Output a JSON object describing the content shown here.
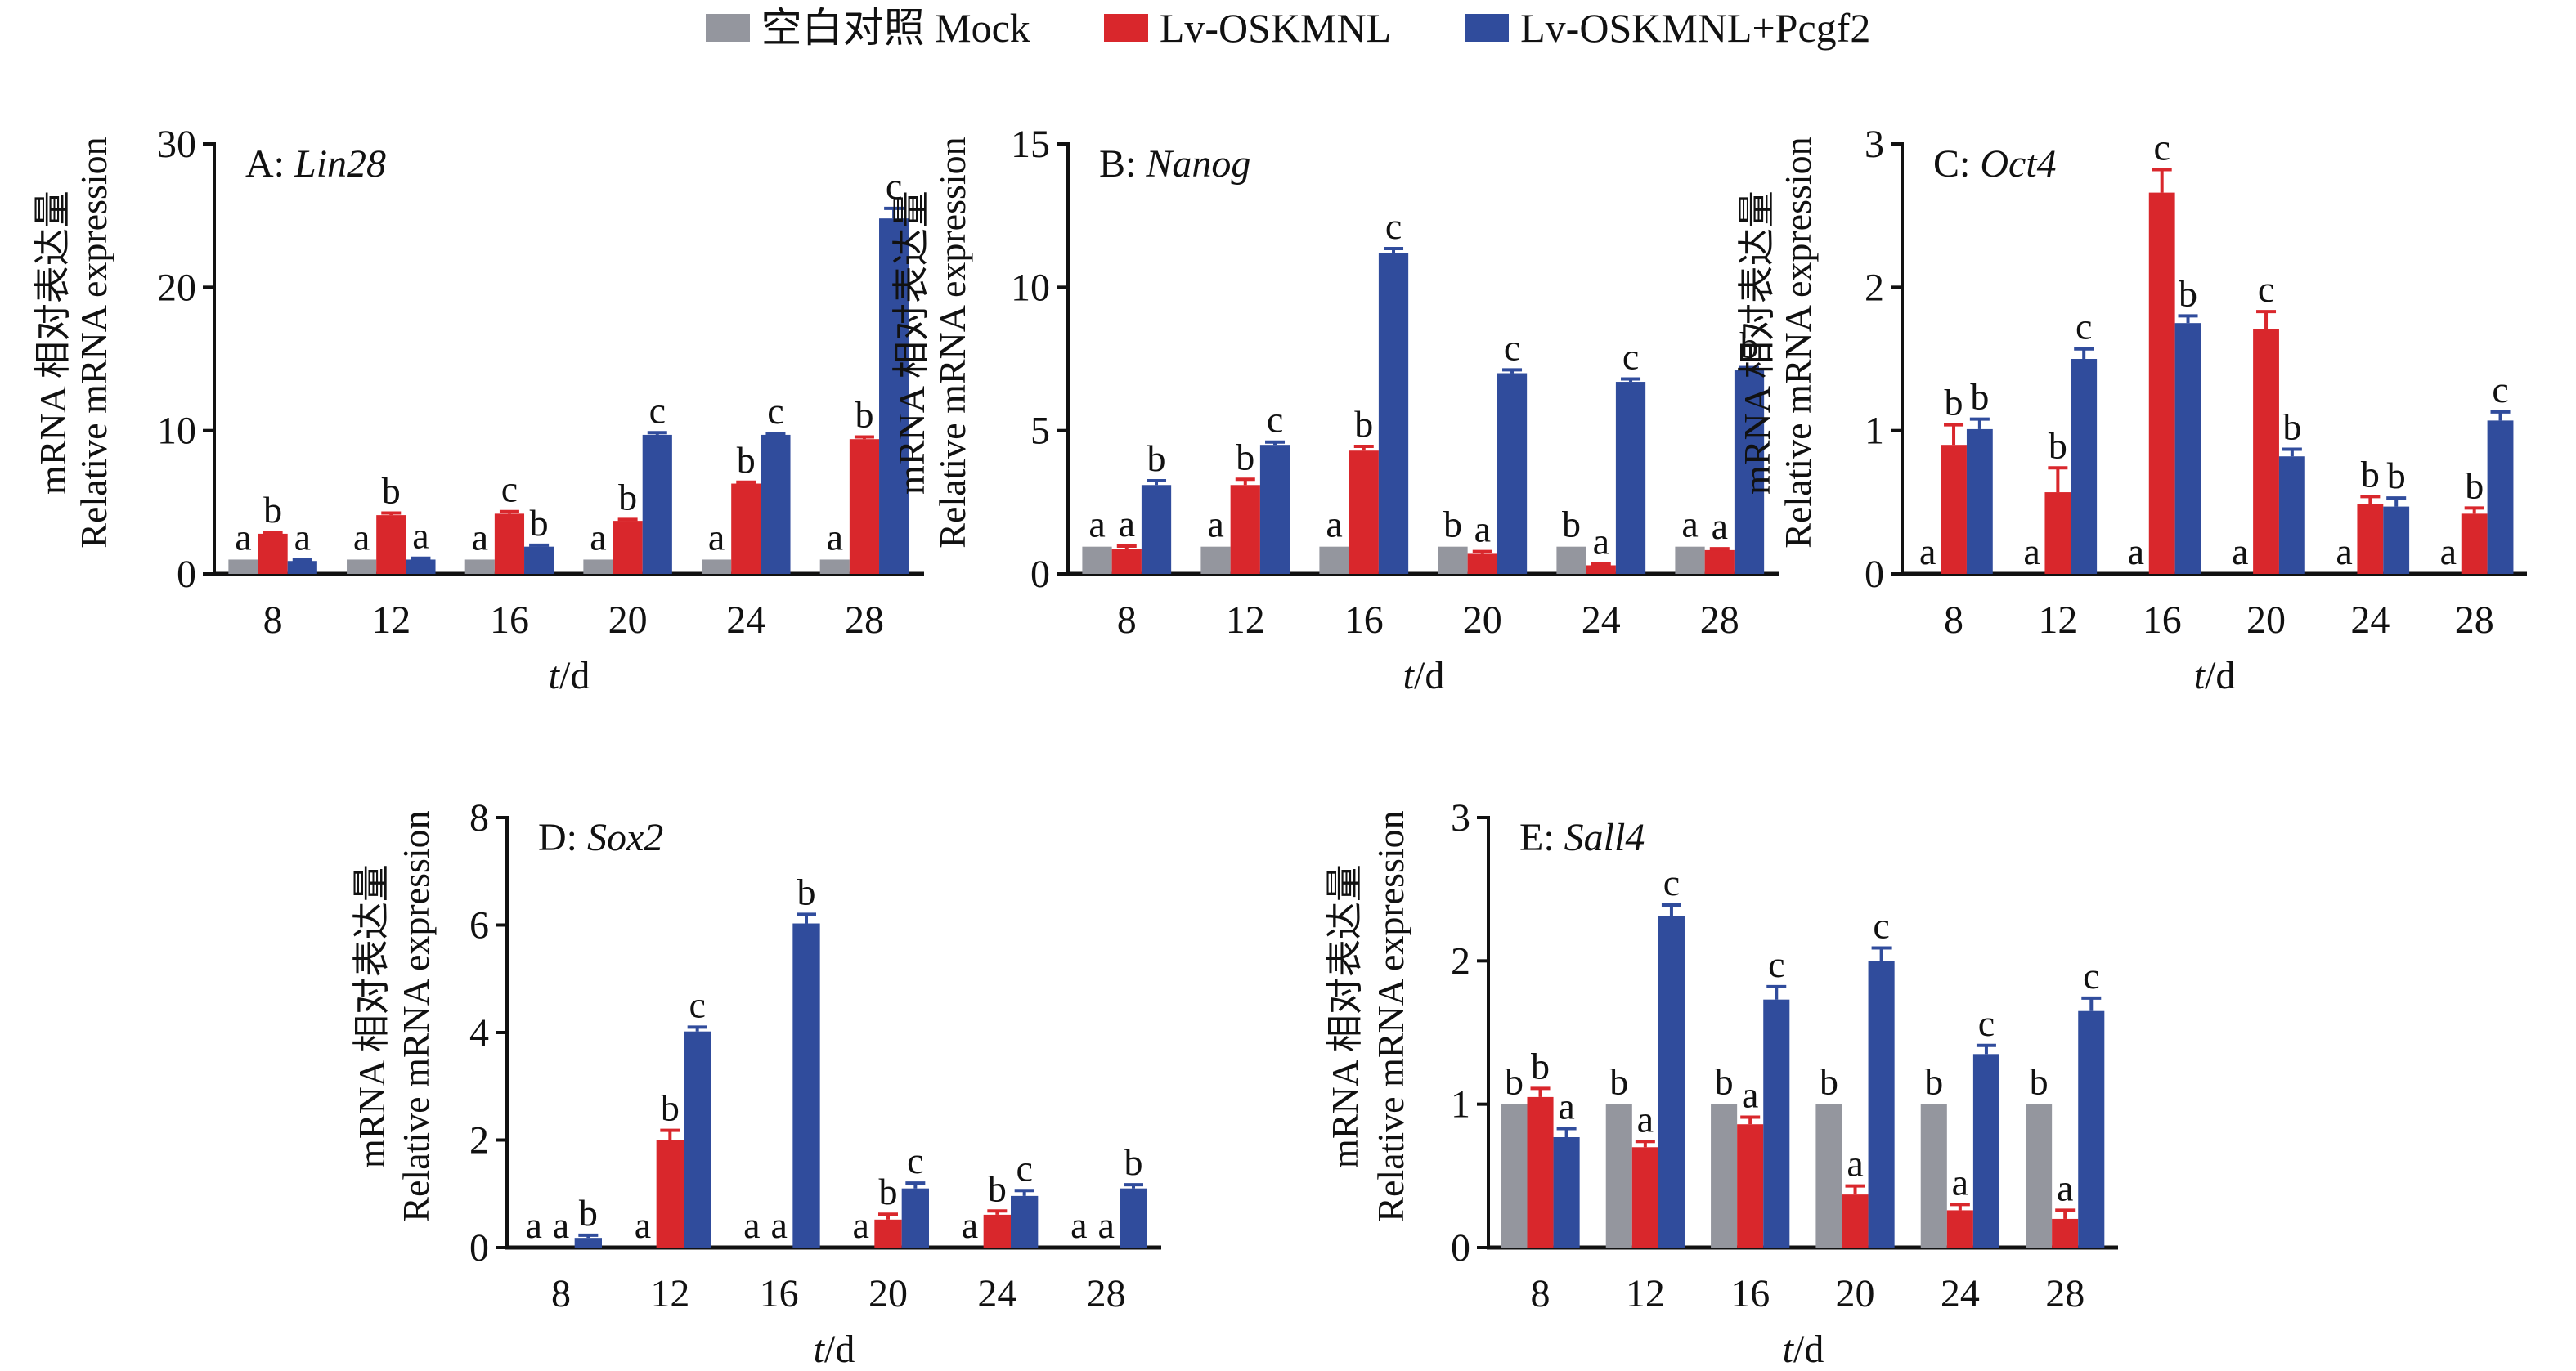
{
  "legend": [
    {
      "label": "空白对照 Mock",
      "color": "#94969e"
    },
    {
      "label": "Lv-OSKMNL",
      "color": "#d9272c"
    },
    {
      "label": "Lv-OSKMNL+Pcgf2",
      "color": "#304c9c"
    }
  ],
  "chart_data": [
    {
      "type": "bar",
      "panel": "A",
      "title_prefix": "A: ",
      "title_gene": "Lin28",
      "xlabel_italic": "t",
      "xlabel_rest": "/d",
      "ylabel_cn": "mRNA 相对表达量",
      "ylabel_en": "Relative mRNA expression",
      "categories": [
        "8",
        "12",
        "16",
        "20",
        "24",
        "28"
      ],
      "ylim": [
        0,
        30
      ],
      "yticks": [
        0,
        10,
        20,
        30
      ],
      "series": [
        {
          "name": "空白对照 Mock",
          "values": [
            1,
            1,
            1,
            1,
            1,
            1
          ],
          "errors": [
            0,
            0,
            0,
            0,
            0,
            0
          ],
          "letters": [
            "a",
            "a",
            "a",
            "a",
            "a",
            "a"
          ]
        },
        {
          "name": "Lv-OSKMNL",
          "values": [
            2.8,
            4.1,
            4.2,
            3.7,
            6.3,
            9.4
          ],
          "errors": [
            0.1,
            0.15,
            0.15,
            0.1,
            0.1,
            0.15
          ],
          "letters": [
            "b",
            "b",
            "c",
            "b",
            "b",
            "b"
          ]
        },
        {
          "name": "Lv-OSKMNL+Pcgf2",
          "values": [
            0.9,
            1.0,
            1.9,
            9.7,
            9.7,
            24.8
          ],
          "errors": [
            0.1,
            0.1,
            0.1,
            0.15,
            0.1,
            0.7
          ],
          "letters": [
            "a",
            "a",
            "b",
            "c",
            "c",
            "c"
          ]
        }
      ]
    },
    {
      "type": "bar",
      "panel": "B",
      "title_prefix": "B: ",
      "title_gene": "Nanog",
      "xlabel_italic": "t",
      "xlabel_rest": "/d",
      "ylabel_cn": "mRNA 相对表达量",
      "ylabel_en": "Relative mRNA expression",
      "categories": [
        "8",
        "12",
        "16",
        "20",
        "24",
        "28"
      ],
      "ylim": [
        0,
        15
      ],
      "yticks": [
        0,
        5,
        10,
        15
      ],
      "series": [
        {
          "name": "空白对照 Mock",
          "values": [
            0.95,
            0.95,
            0.95,
            0.95,
            0.95,
            0.95
          ],
          "errors": [
            0,
            0,
            0,
            0,
            0,
            0
          ],
          "letters": [
            "a",
            "a",
            "a",
            "b",
            "b",
            "a"
          ]
        },
        {
          "name": "Lv-OSKMNL",
          "values": [
            0.87,
            3.1,
            4.3,
            0.7,
            0.3,
            0.83
          ],
          "errors": [
            0.1,
            0.2,
            0.15,
            0.08,
            0.05,
            0.05
          ],
          "letters": [
            "a",
            "b",
            "b",
            "a",
            "a",
            "a"
          ]
        },
        {
          "name": "Lv-OSKMNL+Pcgf2",
          "values": [
            3.1,
            4.5,
            11.2,
            7.0,
            6.7,
            7.1
          ],
          "errors": [
            0.15,
            0.1,
            0.15,
            0.12,
            0.1,
            0.1
          ],
          "letters": [
            "b",
            "c",
            "c",
            "c",
            "c",
            "b"
          ]
        }
      ]
    },
    {
      "type": "bar",
      "panel": "C",
      "title_prefix": "C: ",
      "title_gene": "Oct4",
      "xlabel_italic": "t",
      "xlabel_rest": "/d",
      "ylabel_cn": "mRNA 相对表达量",
      "ylabel_en": "Relative mRNA expression",
      "categories": [
        "8",
        "12",
        "16",
        "20",
        "24",
        "28"
      ],
      "ylim": [
        0,
        3
      ],
      "yticks": [
        0,
        1,
        2,
        3
      ],
      "series": [
        {
          "name": "空白对照 Mock",
          "values": [
            0,
            0,
            0,
            0,
            0,
            0
          ],
          "errors": [
            0,
            0,
            0,
            0,
            0,
            0
          ],
          "letters": [
            "a",
            "a",
            "a",
            "a",
            "a",
            "a"
          ]
        },
        {
          "name": "Lv-OSKMNL",
          "values": [
            0.9,
            0.57,
            2.66,
            1.71,
            0.49,
            0.42
          ],
          "errors": [
            0.14,
            0.17,
            0.16,
            0.12,
            0.05,
            0.04
          ],
          "letters": [
            "b",
            "b",
            "c",
            "c",
            "b",
            "b"
          ]
        },
        {
          "name": "Lv-OSKMNL+Pcgf2",
          "values": [
            1.01,
            1.5,
            1.75,
            0.82,
            0.47,
            1.07
          ],
          "errors": [
            0.07,
            0.07,
            0.05,
            0.05,
            0.06,
            0.06
          ],
          "letters": [
            "b",
            "c",
            "b",
            "b",
            "b",
            "c"
          ]
        }
      ]
    },
    {
      "type": "bar",
      "panel": "D",
      "title_prefix": "D: ",
      "title_gene": "Sox2",
      "xlabel_italic": "t",
      "xlabel_rest": "/d",
      "ylabel_cn": "mRNA 相对表达量",
      "ylabel_en": "Relative mRNA expression",
      "categories": [
        "8",
        "12",
        "16",
        "20",
        "24",
        "28"
      ],
      "ylim": [
        0,
        8
      ],
      "yticks": [
        0,
        2,
        4,
        6,
        8
      ],
      "series": [
        {
          "name": "空白对照 Mock",
          "values": [
            0,
            0,
            0,
            0,
            0,
            0
          ],
          "errors": [
            0,
            0,
            0,
            0,
            0,
            0
          ],
          "letters": [
            "a",
            "a",
            "a",
            "a",
            "a",
            "a"
          ]
        },
        {
          "name": "Lv-OSKMNL",
          "values": [
            0,
            2.0,
            0,
            0.52,
            0.61,
            0
          ],
          "errors": [
            0,
            0.18,
            0,
            0.1,
            0.07,
            0
          ],
          "letters": [
            "a",
            "b",
            "a",
            "b",
            "b",
            "a"
          ]
        },
        {
          "name": "Lv-OSKMNL+Pcgf2",
          "values": [
            0.18,
            4.02,
            6.03,
            1.1,
            0.96,
            1.1
          ],
          "errors": [
            0.05,
            0.08,
            0.17,
            0.1,
            0.1,
            0.07
          ],
          "letters": [
            "b",
            "c",
            "b",
            "c",
            "c",
            "b"
          ]
        }
      ]
    },
    {
      "type": "bar",
      "panel": "E",
      "title_prefix": "E: ",
      "title_gene": "Sall4",
      "xlabel_italic": "t",
      "xlabel_rest": "/d",
      "ylabel_cn": "mRNA 相对表达量",
      "ylabel_en": "Relative mRNA expression",
      "categories": [
        "8",
        "12",
        "16",
        "20",
        "24",
        "28"
      ],
      "ylim": [
        0,
        3
      ],
      "yticks": [
        0,
        1,
        2,
        3
      ],
      "series": [
        {
          "name": "空白对照 Mock",
          "values": [
            1,
            1,
            1,
            1,
            1,
            1
          ],
          "errors": [
            0,
            0,
            0,
            0,
            0,
            0
          ],
          "letters": [
            "b",
            "b",
            "b",
            "b",
            "b",
            "b"
          ]
        },
        {
          "name": "Lv-OSKMNL",
          "values": [
            1.05,
            0.7,
            0.86,
            0.37,
            0.26,
            0.2
          ],
          "errors": [
            0.06,
            0.04,
            0.05,
            0.06,
            0.04,
            0.06
          ],
          "letters": [
            "b",
            "a",
            "a",
            "a",
            "a",
            "a"
          ]
        },
        {
          "name": "Lv-OSKMNL+Pcgf2",
          "values": [
            0.77,
            2.31,
            1.73,
            2.0,
            1.35,
            1.65
          ],
          "errors": [
            0.06,
            0.08,
            0.09,
            0.09,
            0.06,
            0.09
          ],
          "letters": [
            "a",
            "c",
            "c",
            "c",
            "c",
            "c"
          ]
        }
      ]
    }
  ]
}
